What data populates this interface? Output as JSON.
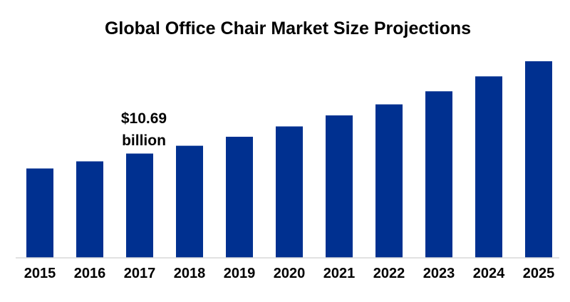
{
  "chart_data": {
    "type": "bar",
    "title": "Global Office Chair Market Size Projections",
    "xlabel": "",
    "ylabel": "",
    "categories": [
      "2015",
      "2016",
      "2017",
      "2018",
      "2019",
      "2020",
      "2021",
      "2022",
      "2023",
      "2024",
      "2025"
    ],
    "values": [
      9.16,
      9.89,
      10.69,
      11.49,
      12.41,
      13.47,
      14.6,
      15.73,
      17.07,
      18.6,
      20.15
    ],
    "ylim": [
      0,
      20.15
    ],
    "grid": false,
    "legend": "none",
    "bar_color": "#003090",
    "annotations": [
      {
        "category": "2017",
        "line1": "$10.69",
        "line2": "billion"
      }
    ]
  }
}
